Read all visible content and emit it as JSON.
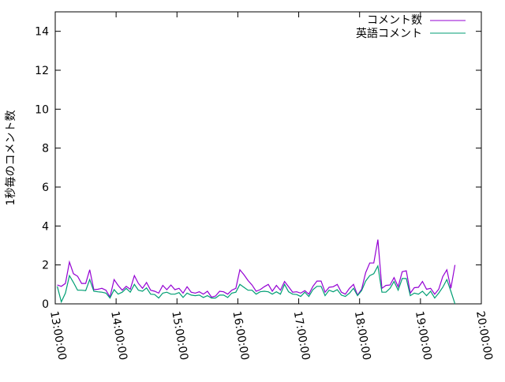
{
  "chart_data": {
    "type": "line",
    "title": "",
    "xlabel": "",
    "ylabel": "1秒毎のコメント数",
    "xlim": [
      "13:00:00",
      "20:00:00"
    ],
    "ylim": [
      0,
      15
    ],
    "x_ticks": [
      "13:00:00",
      "14:00:00",
      "15:00:00",
      "16:00:00",
      "17:00:00",
      "18:00:00",
      "19:00:00",
      "20:00:00"
    ],
    "y_ticks": [
      0,
      2,
      4,
      6,
      8,
      10,
      12,
      14
    ],
    "grid": false,
    "legend": "top-right",
    "x": [
      "13:02",
      "13:06",
      "13:10",
      "13:14",
      "13:18",
      "13:22",
      "13:26",
      "13:30",
      "13:34",
      "13:38",
      "13:42",
      "13:46",
      "13:50",
      "13:54",
      "13:58",
      "14:02",
      "14:06",
      "14:10",
      "14:14",
      "14:18",
      "14:22",
      "14:26",
      "14:30",
      "14:34",
      "14:38",
      "14:42",
      "14:46",
      "14:50",
      "14:54",
      "14:58",
      "15:02",
      "15:06",
      "15:10",
      "15:14",
      "15:18",
      "15:22",
      "15:26",
      "15:30",
      "15:34",
      "15:38",
      "15:42",
      "15:46",
      "15:50",
      "15:54",
      "15:58",
      "16:02",
      "16:06",
      "16:10",
      "16:14",
      "16:18",
      "16:22",
      "16:26",
      "16:30",
      "16:34",
      "16:38",
      "16:42",
      "16:46",
      "16:50",
      "16:54",
      "16:58",
      "17:02",
      "17:06",
      "17:10",
      "17:14",
      "17:18",
      "17:22",
      "17:26",
      "17:30",
      "17:34",
      "17:38",
      "17:42",
      "17:46",
      "17:50",
      "17:54",
      "17:58",
      "18:02",
      "18:06",
      "18:10",
      "18:14",
      "18:18",
      "18:22",
      "18:26",
      "18:30",
      "18:34",
      "18:38",
      "18:42",
      "18:46",
      "18:50",
      "18:54",
      "18:58",
      "19:02",
      "19:06",
      "19:10",
      "19:14",
      "19:18",
      "19:22",
      "19:26",
      "19:30",
      "19:34"
    ],
    "series": [
      {
        "name": "コメント数",
        "color": "#9400d3",
        "values": [
          0.97,
          0.9,
          1.05,
          2.15,
          1.55,
          1.42,
          1.05,
          1.05,
          1.75,
          0.73,
          0.75,
          0.8,
          0.7,
          0.35,
          1.25,
          0.95,
          0.7,
          0.9,
          0.75,
          1.45,
          1.05,
          0.8,
          1.1,
          0.7,
          0.65,
          0.55,
          0.95,
          0.73,
          0.97,
          0.73,
          0.8,
          0.55,
          0.88,
          0.6,
          0.55,
          0.62,
          0.5,
          0.65,
          0.35,
          0.4,
          0.65,
          0.62,
          0.5,
          0.7,
          0.8,
          1.75,
          1.5,
          1.2,
          0.97,
          0.65,
          0.73,
          0.88,
          1.0,
          0.65,
          0.95,
          0.7,
          1.15,
          0.88,
          0.6,
          0.62,
          0.55,
          0.68,
          0.5,
          0.9,
          1.17,
          1.17,
          0.6,
          0.85,
          0.88,
          1.0,
          0.6,
          0.5,
          0.8,
          1.0,
          0.45,
          0.75,
          1.6,
          2.1,
          2.1,
          3.3,
          0.8,
          0.95,
          0.97,
          1.35,
          0.88,
          1.65,
          1.7,
          0.55,
          0.83,
          0.85,
          1.15,
          0.75,
          0.8,
          0.5,
          0.75,
          1.4,
          1.75,
          0.8,
          2.0
        ]
      },
      {
        "name": "英語コメント",
        "color": "#009e73",
        "values": [
          0.9,
          0.1,
          0.55,
          1.45,
          1.1,
          0.7,
          0.7,
          0.68,
          1.25,
          0.65,
          0.62,
          0.6,
          0.55,
          0.3,
          0.73,
          0.5,
          0.6,
          0.8,
          0.6,
          1.0,
          0.7,
          0.65,
          0.82,
          0.5,
          0.48,
          0.3,
          0.55,
          0.6,
          0.5,
          0.5,
          0.58,
          0.33,
          0.55,
          0.45,
          0.42,
          0.45,
          0.33,
          0.42,
          0.3,
          0.3,
          0.45,
          0.45,
          0.33,
          0.55,
          0.6,
          1.0,
          0.85,
          0.7,
          0.7,
          0.5,
          0.62,
          0.65,
          0.62,
          0.5,
          0.62,
          0.5,
          1.0,
          0.62,
          0.5,
          0.48,
          0.38,
          0.6,
          0.38,
          0.73,
          0.9,
          0.9,
          0.42,
          0.7,
          0.62,
          0.73,
          0.45,
          0.38,
          0.55,
          0.8,
          0.42,
          0.68,
          1.17,
          1.45,
          1.55,
          1.95,
          0.6,
          0.6,
          0.8,
          1.15,
          0.7,
          1.3,
          1.3,
          0.42,
          0.55,
          0.5,
          0.65,
          0.42,
          0.65,
          0.3,
          0.55,
          0.85,
          1.25,
          0.65,
          0.0
        ]
      }
    ]
  }
}
